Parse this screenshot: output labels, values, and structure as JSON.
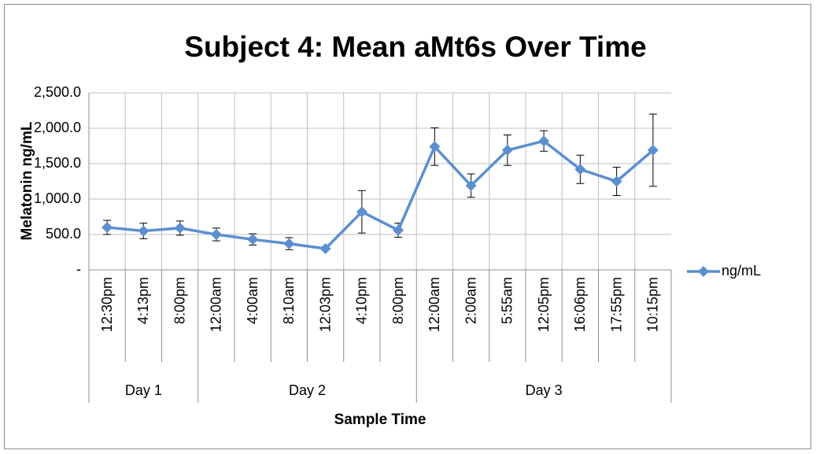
{
  "chart_data": {
    "type": "line",
    "title": "Subject 4: Mean aMt6s Over Time",
    "x_label": "Sample Time",
    "y_label": "Melatonin ng/mL",
    "categories": [
      "12:30pm",
      "4:13pm",
      "8:00pm",
      "12:00am",
      "4:00am",
      "8:10am",
      "12:03pm",
      "4:10pm",
      "8:00pm",
      "12:00am",
      "2:00am",
      "5:55am",
      "12:05pm",
      "16:06pm",
      "17:55pm",
      "10:15pm"
    ],
    "category_groups": [
      {
        "name": "Day 1",
        "count": 3
      },
      {
        "name": "Day 2",
        "count": 6
      },
      {
        "name": "Day 3",
        "count": 7
      }
    ],
    "series": [
      {
        "name": "ng/mL",
        "color": "#5b8fd0",
        "values": [
          600,
          550,
          590,
          500,
          430,
          370,
          300,
          820,
          560,
          1740,
          1190,
          1690,
          1820,
          1420,
          1250,
          1690
        ],
        "errors": [
          100,
          110,
          100,
          90,
          80,
          85,
          0,
          300,
          100,
          265,
          165,
          215,
          145,
          200,
          200,
          510
        ]
      }
    ],
    "ylim": [
      0,
      2500
    ],
    "yticks": [
      {
        "value": 0,
        "label": "-"
      },
      {
        "value": 500,
        "label": "500.0"
      },
      {
        "value": 1000,
        "label": "1,000.0"
      },
      {
        "value": 1500,
        "label": "1,500.0"
      },
      {
        "value": 2000,
        "label": "2,000.0"
      },
      {
        "value": 2500,
        "label": "2,500.0"
      }
    ],
    "grid": true,
    "legend": "right"
  }
}
